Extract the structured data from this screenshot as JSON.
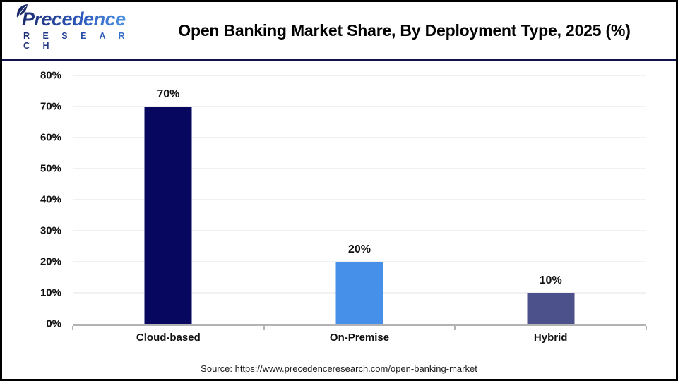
{
  "header": {
    "logo": {
      "name": "Precedence",
      "subtitle": "R E S E A R C H"
    },
    "title": "Open Banking Market Share, By Deployment Type, 2025 (%)"
  },
  "chart_data": {
    "type": "bar",
    "title": "Open Banking Market Share, By Deployment Type, 2025 (%)",
    "categories": [
      "Cloud-based",
      "On-Premise",
      "Hybrid"
    ],
    "values": [
      70,
      20,
      10
    ],
    "value_labels": [
      "70%",
      "20%",
      "10%"
    ],
    "bar_colors": [
      "#070760",
      "#4690ea",
      "#4c518c"
    ],
    "xlabel": "",
    "ylabel": "",
    "ylim": [
      0,
      80
    ],
    "ytick_step": 10,
    "ytick_suffix": "%",
    "grid": true,
    "legend": false
  },
  "footer": {
    "source": "Source: https://www.precedenceresearch.com/open-banking-market"
  },
  "colors": {
    "brand-navy": "#1b2a6b",
    "brand-blue": "#4a90e2",
    "divider-navy": "#12124c",
    "grid-gray": "#e3e3e3",
    "axis-gray": "#b3b3b3"
  }
}
